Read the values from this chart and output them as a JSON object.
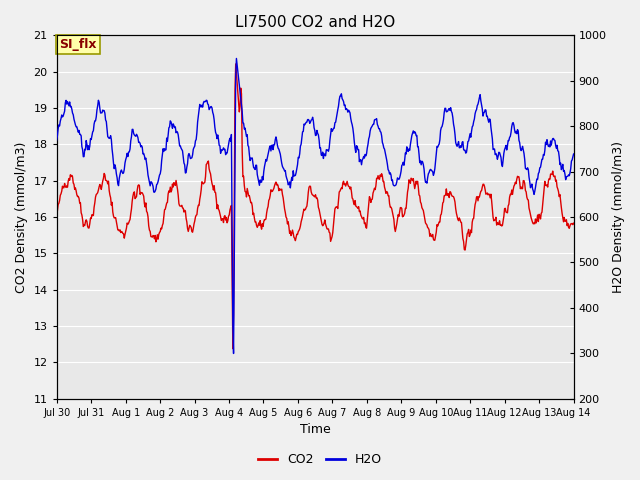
{
  "title": "LI7500 CO2 and H2O",
  "xlabel": "Time",
  "ylabel_left": "CO2 Density (mmol/m3)",
  "ylabel_right": "H2O Density (mmol/m3)",
  "co2_color": "#dd0000",
  "h2o_color": "#0000dd",
  "ylim_left": [
    11.0,
    21.0
  ],
  "ylim_right": [
    200,
    1000
  ],
  "tick_labels": [
    "Jul 30",
    "Jul 31",
    "Aug 1",
    "Aug 2",
    "Aug 3",
    "Aug 4",
    "Aug 5",
    "Aug 6",
    "Aug 7",
    "Aug 8",
    "Aug 9",
    "Aug 10",
    "Aug 11",
    "Aug 12",
    "Aug 13",
    "Aug 14"
  ],
  "yticks_left": [
    11.0,
    12.0,
    13.0,
    14.0,
    15.0,
    16.0,
    17.0,
    18.0,
    19.0,
    20.0,
    21.0
  ],
  "yticks_right": [
    200,
    300,
    400,
    500,
    600,
    700,
    800,
    900,
    1000
  ],
  "background_color": "#e8e8e8",
  "grid_color": "#ffffff",
  "title_fontsize": 11,
  "axis_label_fontsize": 9,
  "tick_fontsize": 8,
  "legend_fontsize": 9,
  "annotation_text": "SI_flx",
  "annotation_facecolor": "#ffffaa",
  "annotation_edgecolor": "#999900",
  "annotation_textcolor": "#880000",
  "linewidth": 1.0
}
